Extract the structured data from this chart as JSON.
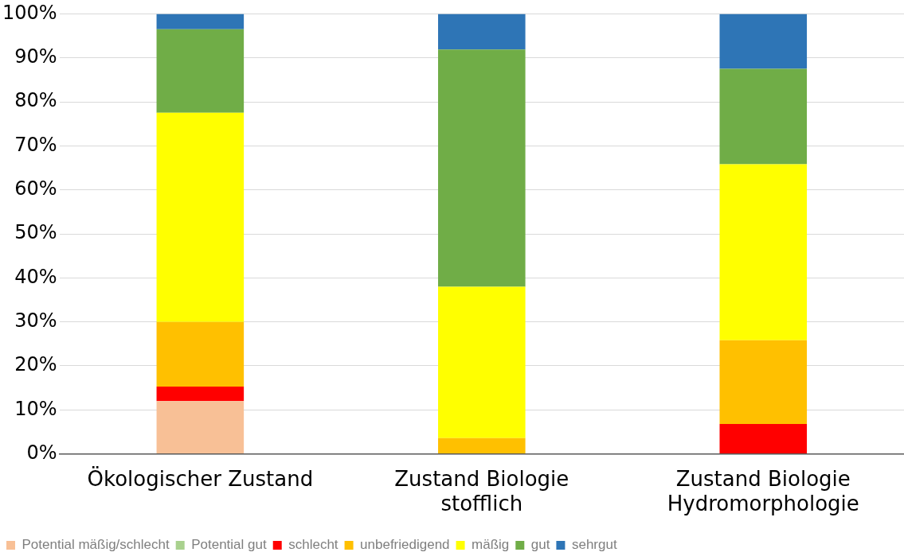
{
  "chart_data": {
    "type": "bar",
    "stacked": true,
    "categories": [
      "Ökologischer Zustand",
      "Zustand Biologie stofflich",
      "Zustand Biologie Hydromorphologie"
    ],
    "series": [
      {
        "name": "Potential mäßig/schlecht",
        "color": "#f8c096",
        "values": [
          12,
          null,
          null
        ]
      },
      {
        "name": "Potential gut",
        "color": "#a9d18e",
        "values": [
          null,
          null,
          null
        ]
      },
      {
        "name": "schlecht",
        "color": "#ff0000",
        "values": [
          3.3,
          null,
          6.8
        ]
      },
      {
        "name": "unbefriedigend",
        "color": "#ffc000",
        "values": [
          14.7,
          3.6,
          19
        ]
      },
      {
        "name": "mäßig",
        "color": "#ffff00",
        "values": [
          47.5,
          34.4,
          40
        ]
      },
      {
        "name": "gut",
        "color": "#70ad47",
        "values": [
          19,
          53.9,
          21.7
        ]
      },
      {
        "name": "sehrgut",
        "color": "#2e75b6",
        "values": [
          3.5,
          8.1,
          12.5
        ]
      }
    ],
    "ylim": [
      0,
      100
    ],
    "yticks": [
      {
        "value": 0,
        "label": "0%"
      },
      {
        "value": 10,
        "label": "10%"
      },
      {
        "value": 20,
        "label": "20%"
      },
      {
        "value": 30,
        "label": "30%"
      },
      {
        "value": 40,
        "label": "40%"
      },
      {
        "value": 50,
        "label": "50%"
      },
      {
        "value": 60,
        "label": "60%"
      },
      {
        "value": 70,
        "label": "70%"
      },
      {
        "value": 80,
        "label": "80%"
      },
      {
        "value": 90,
        "label": "90%"
      },
      {
        "value": 100,
        "label": "100%"
      }
    ],
    "grid": "y",
    "legend": "bottom"
  }
}
